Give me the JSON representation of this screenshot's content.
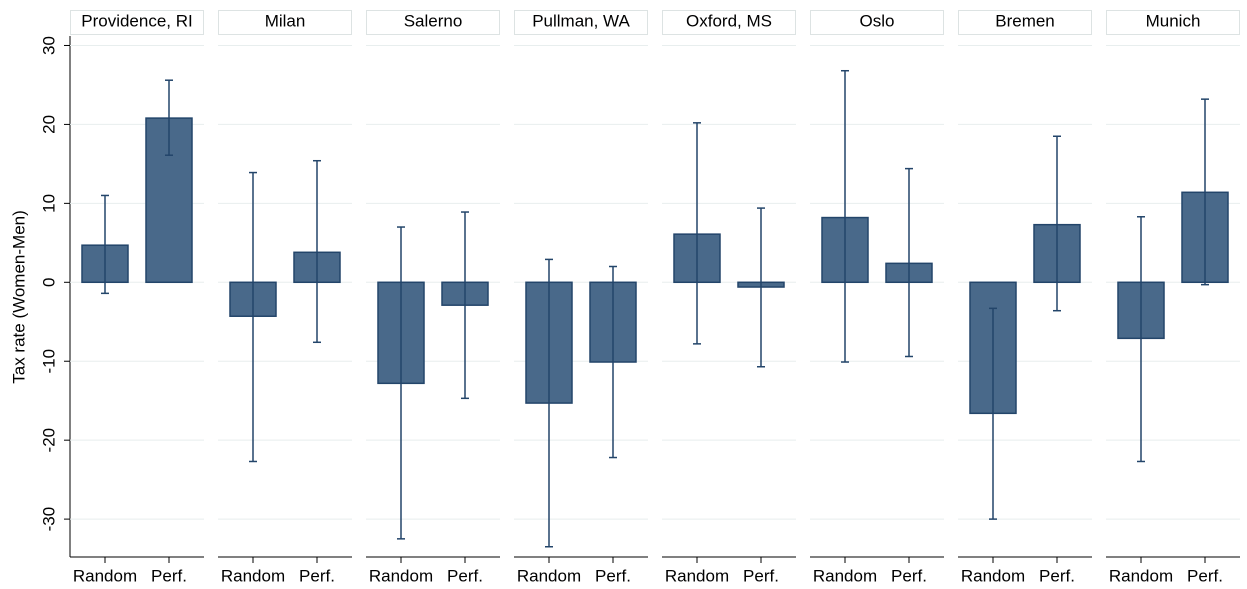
{
  "chart_data": {
    "type": "bar",
    "ylabel": "Tax rate (Women-Men)",
    "ylim": [
      -34.8,
      31.2
    ],
    "yticks": [
      30,
      20,
      10,
      0,
      -10,
      -20,
      -30
    ],
    "grid": true,
    "color": "#49698a",
    "edge_color": "#23456a",
    "panels": [
      {
        "title": "Providence, RI",
        "categories": [
          "Random",
          "Perf."
        ],
        "values": [
          4.7,
          20.8
        ],
        "ci_low": [
          -1.4,
          16.1
        ],
        "ci_high": [
          11.0,
          25.6
        ]
      },
      {
        "title": "Milan",
        "categories": [
          "Random",
          "Perf."
        ],
        "values": [
          -4.3,
          3.8
        ],
        "ci_low": [
          -22.7,
          -7.6
        ],
        "ci_high": [
          13.9,
          15.4
        ]
      },
      {
        "title": "Salerno",
        "categories": [
          "Random",
          "Perf."
        ],
        "values": [
          -12.8,
          -2.9
        ],
        "ci_low": [
          -32.5,
          -14.7
        ],
        "ci_high": [
          7.0,
          8.9
        ]
      },
      {
        "title": "Pullman, WA",
        "categories": [
          "Random",
          "Perf."
        ],
        "values": [
          -15.3,
          -10.1
        ],
        "ci_low": [
          -33.5,
          -22.2
        ],
        "ci_high": [
          2.9,
          2.0
        ]
      },
      {
        "title": "Oxford, MS",
        "categories": [
          "Random",
          "Perf."
        ],
        "values": [
          6.1,
          -0.6
        ],
        "ci_low": [
          -7.8,
          -10.7
        ],
        "ci_high": [
          20.2,
          9.4
        ]
      },
      {
        "title": "Oslo",
        "categories": [
          "Random",
          "Perf."
        ],
        "values": [
          8.2,
          2.4
        ],
        "ci_low": [
          -10.1,
          -9.4
        ],
        "ci_high": [
          26.8,
          14.4
        ]
      },
      {
        "title": "Bremen",
        "categories": [
          "Random",
          "Perf."
        ],
        "values": [
          -16.6,
          7.3
        ],
        "ci_low": [
          -30.0,
          -3.6
        ],
        "ci_high": [
          -3.3,
          18.5
        ]
      },
      {
        "title": "Munich",
        "categories": [
          "Random",
          "Perf."
        ],
        "values": [
          -7.1,
          11.4
        ],
        "ci_low": [
          -22.7,
          -0.3
        ],
        "ci_high": [
          8.3,
          23.2
        ]
      }
    ]
  }
}
